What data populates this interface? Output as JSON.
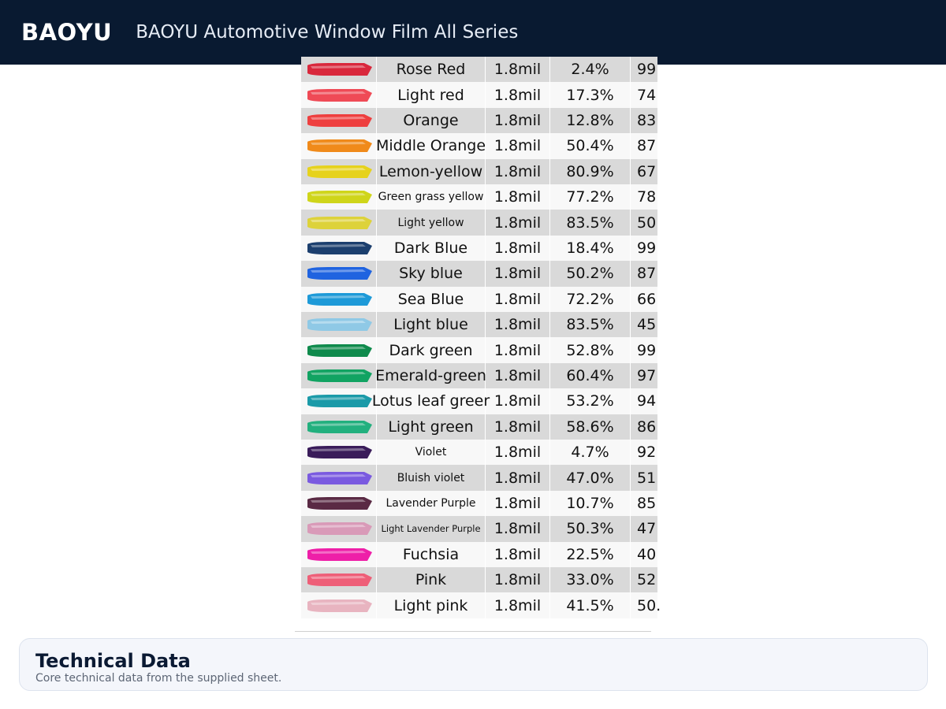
{
  "header": {
    "brand": "BAOYU",
    "title": "BAOYU Automotive Window Film All Series"
  },
  "sheet": {
    "rows": [
      {
        "name": "Rose Red",
        "thickness": "1.8mil",
        "vlt": "2.4%",
        "uv": "99",
        "color": "#d9283c",
        "size": "normal"
      },
      {
        "name": "Light red",
        "thickness": "1.8mil",
        "vlt": "17.3%",
        "uv": "74",
        "color": "#ef4a56",
        "size": "normal"
      },
      {
        "name": "Orange",
        "thickness": "1.8mil",
        "vlt": "12.8%",
        "uv": "83",
        "color": "#ee3f3f",
        "size": "normal"
      },
      {
        "name": "Middle Orange",
        "thickness": "1.8mil",
        "vlt": "50.4%",
        "uv": "87",
        "color": "#f08a1a",
        "size": "normal"
      },
      {
        "name": "Lemon-yellow",
        "thickness": "1.8mil",
        "vlt": "80.9%",
        "uv": "67",
        "color": "#e6d21c",
        "size": "normal"
      },
      {
        "name": "Green grass yellow",
        "thickness": "1.8mil",
        "vlt": "77.2%",
        "uv": "78",
        "color": "#cfd51a",
        "size": "small"
      },
      {
        "name": "Light yellow",
        "thickness": "1.8mil",
        "vlt": "83.5%",
        "uv": "50",
        "color": "#ddd23a",
        "size": "small"
      },
      {
        "name": "Dark Blue",
        "thickness": "1.8mil",
        "vlt": "18.4%",
        "uv": "99",
        "color": "#1c3f6e",
        "size": "normal"
      },
      {
        "name": "Sky blue",
        "thickness": "1.8mil",
        "vlt": "50.2%",
        "uv": "87",
        "color": "#1f63e0",
        "size": "normal"
      },
      {
        "name": "Sea Blue",
        "thickness": "1.8mil",
        "vlt": "72.2%",
        "uv": "66",
        "color": "#1e9ad8",
        "size": "normal"
      },
      {
        "name": "Light blue",
        "thickness": "1.8mil",
        "vlt": "83.5%",
        "uv": "45",
        "color": "#8fc9e6",
        "size": "normal"
      },
      {
        "name": "Dark green",
        "thickness": "1.8mil",
        "vlt": "52.8%",
        "uv": "99",
        "color": "#0f8a4c",
        "size": "normal"
      },
      {
        "name": "Emerald-green",
        "thickness": "1.8mil",
        "vlt": "60.4%",
        "uv": "97",
        "color": "#11a362",
        "size": "normal"
      },
      {
        "name": "Lotus leaf greer",
        "thickness": "1.8mil",
        "vlt": "53.2%",
        "uv": "94",
        "color": "#1b9aa8",
        "size": "normal"
      },
      {
        "name": "Light green",
        "thickness": "1.8mil",
        "vlt": "58.6%",
        "uv": "86",
        "color": "#22b07e",
        "size": "normal"
      },
      {
        "name": "Violet",
        "thickness": "1.8mil",
        "vlt": "4.7%",
        "uv": "92",
        "color": "#3a1c5a",
        "size": "small"
      },
      {
        "name": "Bluish violet",
        "thickness": "1.8mil",
        "vlt": "47.0%",
        "uv": "51",
        "color": "#7a5ae0",
        "size": "small"
      },
      {
        "name": "Lavender Purple",
        "thickness": "1.8mil",
        "vlt": "10.7%",
        "uv": "85",
        "color": "#5a2a44",
        "size": "small"
      },
      {
        "name": "Light Lavender Purple",
        "thickness": "1.8mil",
        "vlt": "50.3%",
        "uv": "47",
        "color": "#d99ab8",
        "size": "tiny"
      },
      {
        "name": "Fuchsia",
        "thickness": "1.8mil",
        "vlt": "22.5%",
        "uv": "40",
        "color": "#ee1fa8",
        "size": "normal"
      },
      {
        "name": "Pink",
        "thickness": "1.8mil",
        "vlt": "33.0%",
        "uv": "52",
        "color": "#ee5f78",
        "size": "normal"
      },
      {
        "name": "Light pink",
        "thickness": "1.8mil",
        "vlt": "41.5%",
        "uv": "50.",
        "color": "#e8b4c0",
        "size": "normal"
      }
    ]
  },
  "card": {
    "title": "Technical Data",
    "subtitle": "Core technical data from the supplied sheet."
  }
}
